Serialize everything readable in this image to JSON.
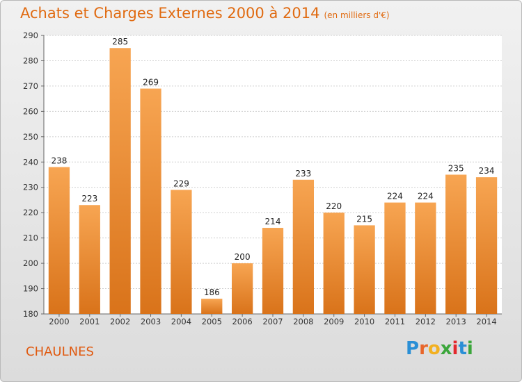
{
  "title": "Achats et Charges Externes 2000 à 2014",
  "subtitle": "(en milliers d'€)",
  "place": "CHAULNES",
  "logo": {
    "letters": [
      "P",
      "r",
      "o",
      "x",
      "i",
      "t",
      "i"
    ],
    "colors": [
      "#2a8fd6",
      "#e8652a",
      "#f2b020",
      "#3ba63b",
      "#e3282d",
      "#2a8fd6",
      "#3ba63b"
    ]
  },
  "colors": {
    "bar_top": "#f7a552",
    "bar_bottom": "#d9731a",
    "title": "#e06a10"
  },
  "chart_data": {
    "type": "bar",
    "categories": [
      "2000",
      "2001",
      "2002",
      "2003",
      "2004",
      "2005",
      "2006",
      "2007",
      "2008",
      "2009",
      "2010",
      "2011",
      "2012",
      "2013",
      "2014"
    ],
    "values": [
      238,
      223,
      285,
      269,
      229,
      186,
      200,
      214,
      233,
      220,
      215,
      224,
      224,
      235,
      234
    ],
    "ylim": [
      180,
      290
    ],
    "yticks": [
      180,
      190,
      200,
      210,
      220,
      230,
      240,
      250,
      260,
      270,
      280,
      290
    ],
    "grid": true
  }
}
